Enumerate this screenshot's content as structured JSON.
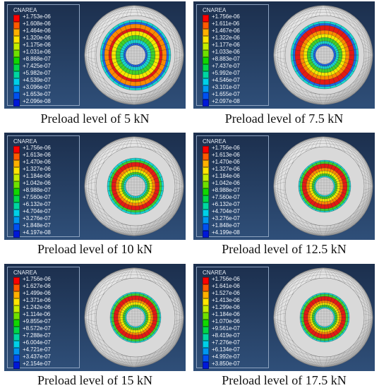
{
  "legend_colors": [
    "#ff0000",
    "#ff5a00",
    "#ffb000",
    "#ffe600",
    "#c4ee00",
    "#6fe000",
    "#11d800",
    "#00d84a",
    "#00d6a2",
    "#00d0e8",
    "#0098f0",
    "#0050f0",
    "#0018d8"
  ],
  "ring_palette": {
    "red": "#e41a14",
    "orange": "#ff8a00",
    "yellow": "#f4e800",
    "green": "#3fd22a",
    "cyan": "#17d6d0",
    "blue": "#1f66e8",
    "gray": "#d9d9d9",
    "hole": "#cfcfcf"
  },
  "panels": [
    {
      "legend_title": "CNAREA",
      "legend": [
        "+1.753e-06",
        "+1.608e-06",
        "+1.464e-06",
        "+1.320e-06",
        "+1.175e-06",
        "+1.031e-06",
        "+8.868e-07",
        "+7.425e-07",
        "+5.982e-07",
        "+4.539e-07",
        "+3.096e-07",
        "+1.653e-07",
        "+2.096e-08"
      ],
      "caption": "Preload level of 5 kN"
    },
    {
      "legend_title": "CNAREA",
      "legend": [
        "+1.756e-06",
        "+1.611e-06",
        "+1.467e-06",
        "+1.322e-06",
        "+1.177e-06",
        "+1.033e-06",
        "+8.883e-07",
        "+7.437e-07",
        "+5.992e-07",
        "+4.546e-07",
        "+3.101e-07",
        "+1.655e-07",
        "+2.097e-08"
      ],
      "caption": "Preload level of 7.5 kN"
    },
    {
      "legend_title": "CNAREA",
      "legend": [
        "+1.756e-06",
        "+1.613e-06",
        "+1.470e-06",
        "+1.327e-06",
        "+1.184e-06",
        "+1.042e-06",
        "+8.988e-07",
        "+7.560e-07",
        "+6.132e-07",
        "+4.704e-07",
        "+3.276e-07",
        "+1.848e-07",
        "+4.197e-08"
      ],
      "caption": "Preload level of 10 kN"
    },
    {
      "legend_title": "CNAREA",
      "legend": [
        "+1.756e-06",
        "+1.613e-06",
        "+1.470e-06",
        "+1.327e-06",
        "+1.184e-06",
        "+1.042e-06",
        "+8.988e-07",
        "+7.560e-07",
        "+6.132e-07",
        "+4.704e-07",
        "+3.276e-07",
        "+1.848e-07",
        "+4.199e-08"
      ],
      "caption": "Preload level of 12.5 kN"
    },
    {
      "legend_title": "CNAREA",
      "legend": [
        "+1.756e-06",
        "+1.627e-06",
        "+1.499e-06",
        "+1.371e-06",
        "+1.242e-06",
        "+1.114e-06",
        "+9.855e-07",
        "+8.572e-07",
        "+7.288e-07",
        "+6.004e-07",
        "+4.721e-07",
        "+3.437e-07",
        "+2.154e-07"
      ],
      "caption": "Preload level of 15 kN"
    },
    {
      "legend_title": "CNAREA",
      "legend": [
        "+1.756e-06",
        "+1.641e-06",
        "+1.527e-06",
        "+1.413e-06",
        "+1.299e-06",
        "+1.184e-06",
        "+1.070e-06",
        "+9.561e-07",
        "+8.419e-07",
        "+7.276e-07",
        "+6.134e-07",
        "+4.992e-07",
        "+3.850e-07"
      ],
      "caption": "Preload level of 17.5 kN"
    }
  ]
}
